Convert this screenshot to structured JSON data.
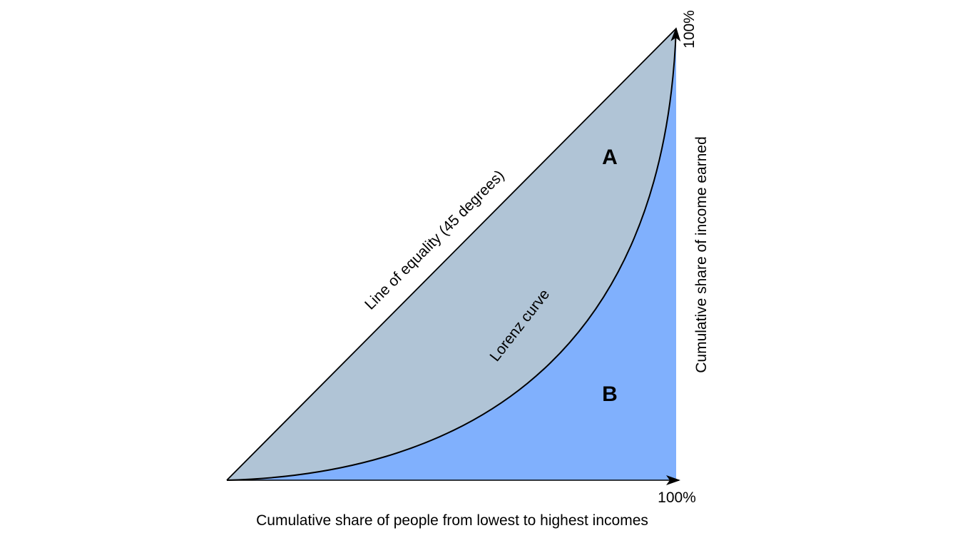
{
  "diagram": {
    "title": "",
    "x_axis": {
      "label": "Cumulative share of people from lowest to highest incomes",
      "end_label": "100%"
    },
    "y_axis": {
      "label": "Cumulative share of income earned",
      "end_label": "100%"
    },
    "curves": {
      "equality_line_label": "Line of equality (45 degrees)",
      "lorenz_curve_label": "Lorenz curve"
    },
    "regions": {
      "a_label": "A",
      "b_label": "B"
    },
    "colors": {
      "region_a": "#b0c4d6",
      "region_b": "#80b0fd",
      "lines": "#000000"
    }
  }
}
